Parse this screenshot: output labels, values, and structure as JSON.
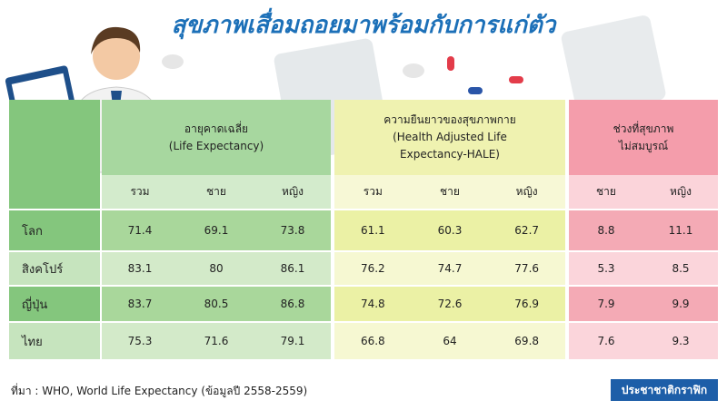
{
  "title": "สุขภาพเสื่อมถอยมาพร้อมกับการแก่ตัว",
  "table": {
    "groups": [
      {
        "lines": [
          "อายุคาดเฉลี่ย",
          "(Life Expectancy)"
        ],
        "columns": [
          "รวม",
          "ชาย",
          "หญิง"
        ]
      },
      {
        "lines": [
          "ความยืนยาวของสุขภาพกาย",
          "(Health Adjusted Life",
          "Expectancy-HALE)"
        ],
        "columns": [
          "รวม",
          "ชาย",
          "หญิง"
        ]
      },
      {
        "lines": [
          "ช่วงที่สุขภาพ",
          "ไม่สมบูรณ์"
        ],
        "columns": [
          "ชาย",
          "หญิง"
        ]
      }
    ],
    "rows": [
      {
        "label": "โลก",
        "values": [
          71.4,
          69.1,
          73.8,
          61.1,
          60.3,
          62.7,
          8.8,
          11.1
        ]
      },
      {
        "label": "สิงคโปร์",
        "values": [
          83.1,
          80,
          86.1,
          76.2,
          74.7,
          77.6,
          5.3,
          8.5
        ]
      },
      {
        "label": "ญี่ปุ่น",
        "values": [
          83.7,
          80.5,
          86.8,
          74.8,
          72.6,
          76.9,
          7.9,
          9.9
        ]
      },
      {
        "label": "ไทย",
        "values": [
          75.3,
          71.6,
          79.1,
          66.8,
          64,
          69.8,
          7.6,
          9.3
        ]
      }
    ]
  },
  "source": "ที่มา : WHO, World Life Expectancy (ข้อมูลปี 2558-2559)",
  "logo": "ประชาชาติกราฟิก"
}
